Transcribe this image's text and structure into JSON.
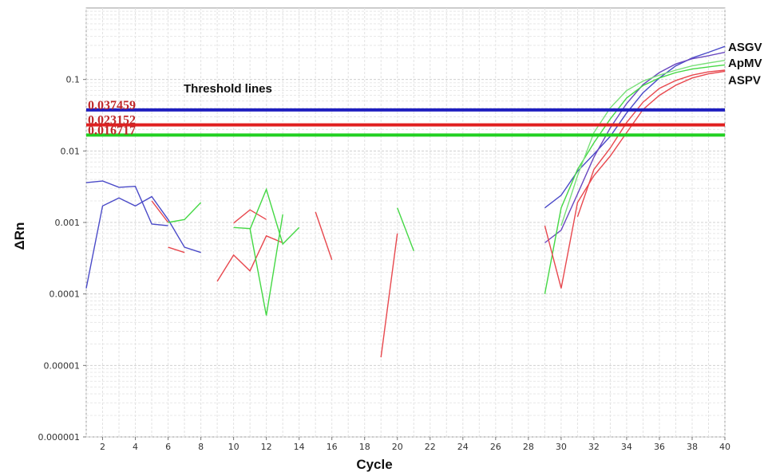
{
  "chart_data": {
    "type": "line",
    "xlabel": "Cycle",
    "ylabel": "ΔRn",
    "xlim": [
      1,
      40
    ],
    "ylim": [
      1e-06,
      1
    ],
    "yscale": "log",
    "grid": true,
    "x_ticks": [
      2,
      4,
      6,
      8,
      10,
      12,
      14,
      16,
      18,
      20,
      22,
      24,
      26,
      28,
      30,
      32,
      34,
      36,
      38,
      40
    ],
    "y_ticks": [
      {
        "value": 0.1,
        "label": "0.1"
      },
      {
        "value": 0.01,
        "label": "0.01"
      },
      {
        "value": 0.001,
        "label": "0.001"
      },
      {
        "value": 0.0001,
        "label": "0.0001"
      },
      {
        "value": 1e-05,
        "label": "0.00001"
      },
      {
        "value": 1e-06,
        "label": "0.000001"
      }
    ],
    "annotation": "Threshold lines",
    "thresholds": [
      {
        "value": 0.037459,
        "label": "0.037459",
        "color": "#1f1fc0"
      },
      {
        "value": 0.023152,
        "label": "0.023152",
        "color": "#e02020"
      },
      {
        "value": 0.016717,
        "label": "0.016717",
        "color": "#22d022"
      }
    ],
    "labels": [
      {
        "text": "ASGV",
        "y": 0.29
      },
      {
        "text": "ApMV",
        "y": 0.175
      },
      {
        "text": "ASPV",
        "y": 0.1
      }
    ],
    "segments": [
      {
        "color": "#4a4ac8",
        "points": [
          [
            1,
            0.00012
          ],
          [
            2,
            0.0017
          ],
          [
            3,
            0.0022
          ],
          [
            4,
            0.0017
          ],
          [
            5,
            0.0023
          ],
          [
            6,
            0.0011
          ],
          [
            7,
            0.00045
          ],
          [
            8,
            0.00038
          ]
        ]
      },
      {
        "color": "#4a4ac8",
        "points": [
          [
            1,
            0.0036
          ],
          [
            2,
            0.0038
          ],
          [
            3,
            0.0031
          ],
          [
            4,
            0.0032
          ],
          [
            5,
            0.00095
          ],
          [
            6,
            0.0009
          ]
        ]
      },
      {
        "color": "#e8484e",
        "points": [
          [
            5,
            0.002
          ],
          [
            6,
            0.001
          ]
        ]
      },
      {
        "color": "#e8484e",
        "points": [
          [
            6,
            0.00045
          ],
          [
            7,
            0.00038
          ]
        ]
      },
      {
        "color": "#44d844",
        "points": [
          [
            6,
            0.001
          ],
          [
            7,
            0.0011
          ],
          [
            8,
            0.0019
          ]
        ]
      },
      {
        "color": "#e8484e",
        "points": [
          [
            9,
            0.00015
          ],
          [
            10,
            0.00035
          ],
          [
            11,
            0.00021
          ],
          [
            12,
            0.00065
          ],
          [
            13,
            0.00052
          ]
        ]
      },
      {
        "color": "#e8484e",
        "points": [
          [
            10,
            0.00098
          ],
          [
            11,
            0.0015
          ],
          [
            12,
            0.0011
          ]
        ]
      },
      {
        "color": "#44d844",
        "points": [
          [
            10,
            0.00085
          ],
          [
            11,
            0.00082
          ],
          [
            12,
            5e-05
          ],
          [
            13,
            0.0013
          ]
        ]
      },
      {
        "color": "#44d844",
        "points": [
          [
            11,
            0.0008
          ],
          [
            12,
            0.0029
          ],
          [
            13,
            0.0005
          ],
          [
            14,
            0.00085
          ]
        ]
      },
      {
        "color": "#e8484e",
        "points": [
          [
            15,
            0.0014
          ],
          [
            16,
            0.0003
          ]
        ]
      },
      {
        "color": "#e8484e",
        "points": [
          [
            19,
            1.3e-05
          ],
          [
            20,
            0.0007
          ]
        ]
      },
      {
        "color": "#44d844",
        "points": [
          [
            20,
            0.0016
          ],
          [
            21,
            0.0004
          ]
        ]
      },
      {
        "color": "#4a4ac8",
        "points": [
          [
            29,
            0.0016
          ],
          [
            30,
            0.0024
          ],
          [
            31,
            0.0052
          ],
          [
            32,
            0.009
          ],
          [
            33,
            0.016
          ],
          [
            34,
            0.034
          ],
          [
            35,
            0.065
          ],
          [
            36,
            0.105
          ],
          [
            37,
            0.155
          ],
          [
            38,
            0.2
          ],
          [
            39,
            0.24
          ],
          [
            40,
            0.29
          ]
        ]
      },
      {
        "color": "#6a48c0",
        "points": [
          [
            29,
            0.00052
          ],
          [
            30,
            0.00078
          ],
          [
            31,
            0.0025
          ],
          [
            32,
            0.0082
          ],
          [
            33,
            0.021
          ],
          [
            34,
            0.046
          ],
          [
            35,
            0.085
          ],
          [
            36,
            0.125
          ],
          [
            37,
            0.165
          ],
          [
            38,
            0.195
          ],
          [
            39,
            0.215
          ],
          [
            40,
            0.24
          ]
        ]
      },
      {
        "color": "#44d844",
        "points": [
          [
            29,
            0.0001
          ],
          [
            30,
            0.0016
          ],
          [
            31,
            0.0055
          ],
          [
            32,
            0.013
          ],
          [
            33,
            0.028
          ],
          [
            34,
            0.055
          ],
          [
            35,
            0.082
          ],
          [
            36,
            0.105
          ],
          [
            37,
            0.125
          ],
          [
            38,
            0.14
          ],
          [
            39,
            0.15
          ],
          [
            40,
            0.16
          ]
        ]
      },
      {
        "color": "#7ae07a",
        "points": [
          [
            30,
            0.0009
          ],
          [
            31,
            0.0045
          ],
          [
            32,
            0.018
          ],
          [
            33,
            0.04
          ],
          [
            34,
            0.07
          ],
          [
            35,
            0.095
          ],
          [
            36,
            0.115
          ],
          [
            37,
            0.135
          ],
          [
            38,
            0.155
          ],
          [
            39,
            0.17
          ],
          [
            40,
            0.185
          ]
        ]
      },
      {
        "color": "#e8484e",
        "points": [
          [
            29,
            0.0009
          ],
          [
            30,
            0.00012
          ],
          [
            31,
            0.0019
          ],
          [
            32,
            0.0045
          ],
          [
            33,
            0.0085
          ],
          [
            34,
            0.018
          ],
          [
            35,
            0.038
          ],
          [
            36,
            0.06
          ],
          [
            37,
            0.083
          ],
          [
            38,
            0.105
          ],
          [
            39,
            0.12
          ],
          [
            40,
            0.13
          ]
        ]
      },
      {
        "color": "#e8484e",
        "points": [
          [
            31,
            0.0012
          ],
          [
            32,
            0.0055
          ],
          [
            33,
            0.011
          ],
          [
            34,
            0.025
          ],
          [
            35,
            0.048
          ],
          [
            36,
            0.075
          ],
          [
            37,
            0.097
          ],
          [
            38,
            0.115
          ],
          [
            39,
            0.128
          ],
          [
            40,
            0.135
          ]
        ]
      }
    ]
  }
}
